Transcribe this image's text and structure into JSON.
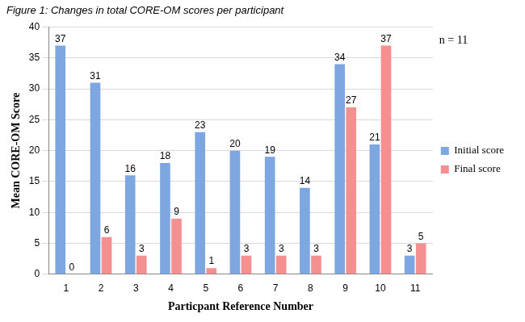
{
  "chart_data": {
    "type": "bar",
    "title": "Figure 1: Changes in total CORE-OM scores per participant",
    "annotations": [
      "n = 11"
    ],
    "x_label": "Particpant Reference Number",
    "y_label": "Mean CORE-OM Score",
    "categories": [
      "1",
      "2",
      "3",
      "4",
      "5",
      "6",
      "7",
      "8",
      "9",
      "10",
      "11"
    ],
    "series": [
      {
        "name": "Initial score",
        "color": "#7ea6e0",
        "values": [
          37,
          31,
          16,
          18,
          23,
          20,
          19,
          14,
          34,
          21,
          3
        ]
      },
      {
        "name": "Final score",
        "color": "#f4908f",
        "values": [
          0,
          6,
          3,
          9,
          1,
          3,
          3,
          3,
          27,
          37,
          5
        ]
      }
    ],
    "ylim": [
      0,
      40
    ],
    "yticks": [
      0,
      5,
      10,
      15,
      20,
      25,
      30,
      35,
      40
    ],
    "grid": true,
    "legend": "right",
    "data_labels": true
  }
}
